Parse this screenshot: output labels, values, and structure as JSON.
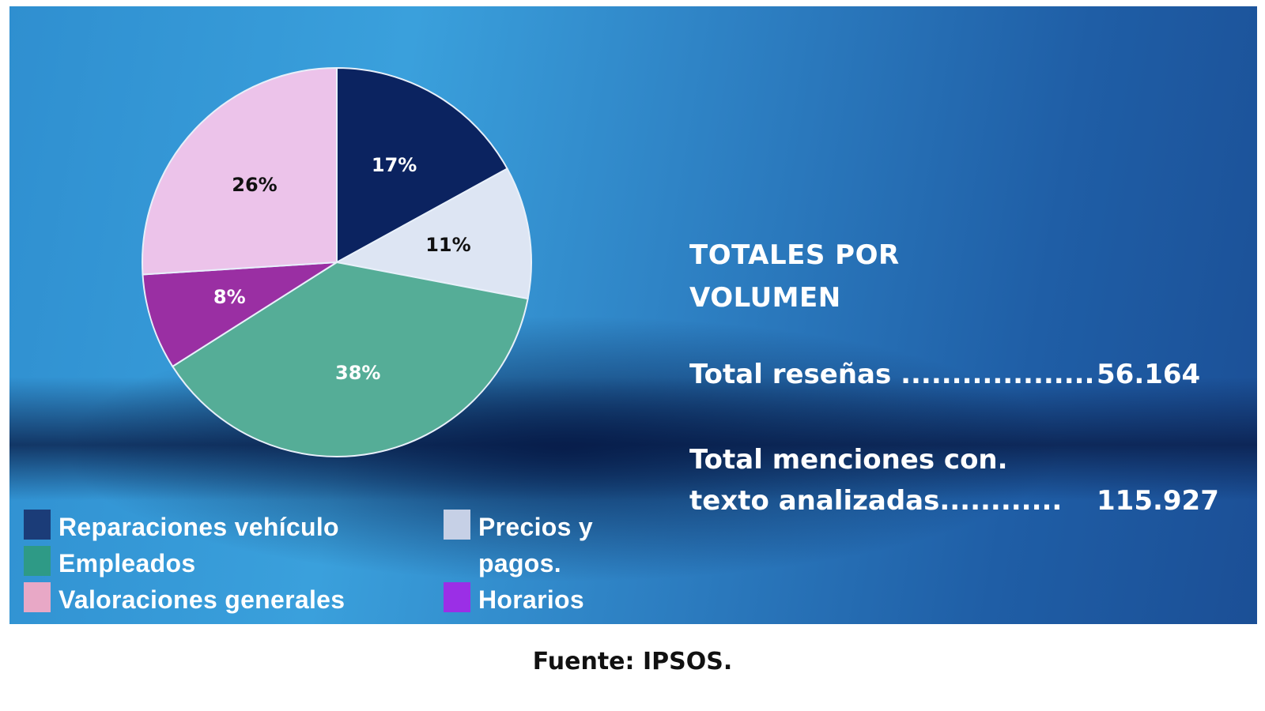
{
  "chart_data": {
    "type": "pie",
    "title": "",
    "categories": [
      "Reparaciones vehículo",
      "Precios y pagos.",
      "Empleados",
      "Horarios",
      "Valoraciones generales"
    ],
    "values": [
      17,
      11,
      38,
      8,
      26
    ],
    "labels": [
      "17%",
      "11%",
      "38%",
      "8%",
      "26%"
    ],
    "colors": [
      "#0b2360",
      "#dde5f3",
      "#55ad97",
      "#9a2fa3",
      "#ecc3ea"
    ],
    "label_colors": [
      "#ffffff",
      "#111111",
      "#ffffff",
      "#ffffff",
      "#111111"
    ],
    "start_angle_deg": 0,
    "direction": "clockwise",
    "legend_position": "bottom-left",
    "legend": [
      {
        "label": "Reparaciones vehículo",
        "color": "#1b3c78"
      },
      {
        "label": "Empleados",
        "color": "#2e9a86"
      },
      {
        "label": "Valoraciones generales",
        "color": "#e8a8c6"
      },
      {
        "label": "Precios y pagos.",
        "color": "#c6d0e6"
      },
      {
        "label": "Horarios",
        "color": "#9b2fe6"
      }
    ]
  },
  "totals": {
    "title_line1": "TOTALES POR",
    "title_line2": "VOLUMEN",
    "rows": [
      {
        "label": "Total reseñas ...................",
        "value": "56.164"
      },
      {
        "label_line1": "Total menciones con.",
        "label_line2": "texto analizadas............",
        "value": "115.927"
      }
    ]
  },
  "source": "Fuente: IPSOS."
}
